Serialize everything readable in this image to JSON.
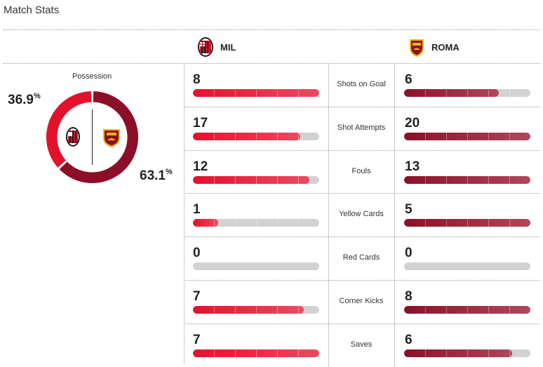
{
  "header": {
    "title": "Match Stats"
  },
  "teams": {
    "home": {
      "abbr": "MIL",
      "crest_icon": "ac-milan-crest-icon",
      "color": "#e4112b"
    },
    "away": {
      "abbr": "ROMA",
      "crest_icon": "as-roma-crest-icon",
      "color": "#8b1027"
    }
  },
  "possession": {
    "label": "Possession",
    "home_value": "36.9",
    "away_value": "63.1",
    "unit": "%"
  },
  "stats": [
    {
      "label": "Shots on Goal",
      "home": "8",
      "away": "6",
      "home_fill": 1.0,
      "away_fill": 0.75
    },
    {
      "label": "Shot Attempts",
      "home": "17",
      "away": "20",
      "home_fill": 0.85,
      "away_fill": 1.0
    },
    {
      "label": "Fouls",
      "home": "12",
      "away": "13",
      "home_fill": 0.92,
      "away_fill": 1.0
    },
    {
      "label": "Yellow Cards",
      "home": "1",
      "away": "5",
      "home_fill": 0.2,
      "away_fill": 1.0
    },
    {
      "label": "Red Cards",
      "home": "0",
      "away": "0",
      "home_fill": 0,
      "away_fill": 0
    },
    {
      "label": "Corner Kicks",
      "home": "7",
      "away": "8",
      "home_fill": 0.875,
      "away_fill": 1.0
    },
    {
      "label": "Saves",
      "home": "7",
      "away": "6",
      "home_fill": 1.0,
      "away_fill": 0.857
    }
  ]
}
